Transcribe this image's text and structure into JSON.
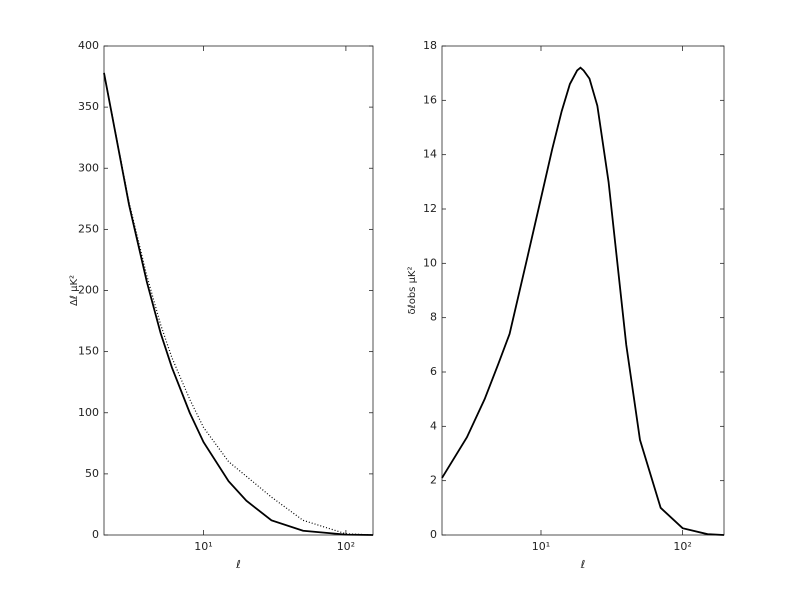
{
  "chart_data": [
    {
      "type": "line",
      "xscale": "log",
      "xlabel": "ℓ",
      "ylabel": "Δℓ μK²",
      "xlim": [
        2,
        155
      ],
      "ylim": [
        0,
        400
      ],
      "xticks": [
        {
          "value": 10,
          "label": "10¹"
        },
        {
          "value": 100,
          "label": "10²"
        }
      ],
      "yticks": [
        0,
        50,
        100,
        150,
        200,
        250,
        300,
        350,
        400
      ],
      "x": [
        2,
        3,
        4,
        5,
        6,
        8,
        10,
        15,
        20,
        30,
        50,
        100,
        155
      ],
      "series": [
        {
          "color": "#000000",
          "style": "solid",
          "values": [
            378,
            270,
            207,
            165,
            137,
            100,
            76,
            44,
            28,
            12,
            3.5,
            0.3,
            0
          ]
        },
        {
          "color": "#000000",
          "style": "dotted",
          "values": [
            378,
            272,
            212,
            172,
            145,
            111,
            88,
            60,
            48,
            31,
            12,
            1,
            0
          ]
        }
      ]
    },
    {
      "type": "line",
      "xscale": "log",
      "xlabel": "ℓ",
      "ylabel": "δℓobs μK²",
      "xlim": [
        2,
        196
      ],
      "ylim": [
        0,
        18
      ],
      "xticks": [
        {
          "value": 10,
          "label": "10¹"
        },
        {
          "value": 100,
          "label": "10²"
        }
      ],
      "yticks": [
        0,
        2,
        4,
        6,
        8,
        10,
        12,
        14,
        16,
        18
      ],
      "x": [
        2,
        3,
        4,
        5,
        6,
        8,
        10,
        12,
        14,
        16,
        18,
        19,
        20,
        22,
        25,
        30,
        40,
        50,
        70,
        100,
        150,
        196
      ],
      "series": [
        {
          "color": "#000000",
          "style": "solid",
          "values": [
            2.1,
            3.6,
            5.0,
            6.3,
            7.4,
            10.2,
            12.4,
            14.2,
            15.6,
            16.6,
            17.1,
            17.2,
            17.1,
            16.8,
            15.8,
            13.0,
            7.0,
            3.5,
            1.0,
            0.25,
            0.03,
            0
          ]
        }
      ]
    }
  ]
}
